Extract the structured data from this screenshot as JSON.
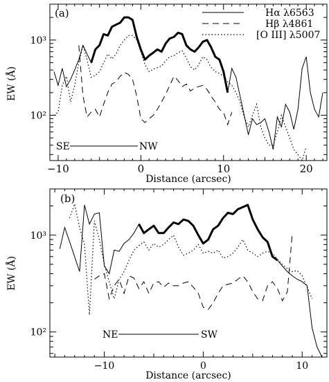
{
  "chart_data": [
    {
      "type": "line",
      "panel_label": "(a)",
      "xlabel": "Distance (arcsec)",
      "ylabel": "EW (Å)",
      "xlim": [
        -11,
        22.5
      ],
      "ylim": [
        25,
        3000
      ],
      "yscale": "log",
      "x_tick_labels": [
        "−10",
        "0",
        "10",
        "20"
      ],
      "x_tick_values": [
        -10,
        0,
        10,
        20
      ],
      "y_tick_labels": [
        "10²",
        "10³"
      ],
      "y_tick_values": [
        100,
        1000
      ],
      "legend": {
        "placement": "top-right",
        "entries": [
          "Hα λ6563",
          "Hβ λ4861",
          "[O III] λ5007"
        ]
      },
      "orientation_labels": {
        "left": "SE",
        "right": "NW"
      },
      "series": [
        {
          "name": "Hα λ6563",
          "style": "solid",
          "x": [
            -10.5,
            -10,
            -9.5,
            -9,
            -8.5,
            -8,
            -7.5,
            -7,
            -6.5,
            -6,
            -5.5,
            -5,
            -4.5,
            -4,
            -3.5,
            -3,
            -2.5,
            -2,
            -1.5,
            -1,
            -0.5,
            0,
            0.5,
            1,
            1.5,
            2,
            2.5,
            3,
            3.5,
            4,
            4.5,
            5,
            5.5,
            6,
            6.5,
            7,
            7.5,
            8,
            8.5,
            9,
            9.5,
            10,
            10.5,
            11,
            11.5,
            12,
            12.5,
            13,
            13.5,
            14,
            14.5,
            15,
            15.5,
            16,
            16.5,
            17,
            17.5,
            18,
            18.5,
            19,
            19.5,
            20,
            20.5,
            21,
            21.5,
            22
          ],
          "y": [
            380,
            250,
            420,
            240,
            300,
            400,
            550,
            850,
            650,
            500,
            750,
            850,
            1200,
            1150,
            1500,
            1600,
            1700,
            2000,
            2000,
            1850,
            1100,
            750,
            550,
            620,
            680,
            750,
            700,
            900,
            1050,
            1100,
            1250,
            1200,
            850,
            750,
            700,
            800,
            950,
            1000,
            800,
            600,
            550,
            380,
            200,
            420,
            320,
            180,
            100,
            55,
            90,
            75,
            80,
            90,
            60,
            35,
            95,
            70,
            140,
            110,
            65,
            120,
            420,
            600,
            200,
            120,
            95,
            200
          ]
        },
        {
          "name": "Hβ λ4861",
          "style": "dashed",
          "x": [
            -7.5,
            -7,
            -6.5,
            -6,
            -5.5,
            -5,
            -4.5,
            -4,
            -3.5,
            -3,
            -2.5,
            -2,
            -1.5,
            -1,
            -0.5,
            0,
            0.5,
            1,
            1.5,
            2,
            2.5,
            3,
            3.5,
            4,
            4.5,
            5,
            5.5,
            6,
            6.5,
            7,
            7.5,
            8,
            8.5,
            9,
            9.5,
            10,
            10.5,
            11
          ],
          "y": [
            850,
            180,
            95,
            110,
            120,
            95,
            140,
            200,
            260,
            280,
            330,
            370,
            350,
            300,
            180,
            90,
            80,
            90,
            100,
            120,
            150,
            190,
            250,
            330,
            290,
            240,
            260,
            210,
            230,
            240,
            250,
            220,
            180,
            150,
            120,
            110,
            75,
            110
          ]
        },
        {
          "name": "[O III] λ5007",
          "style": "dotted",
          "x": [
            -10.5,
            -10,
            -9.5,
            -9,
            -8.5,
            -8,
            -7.5,
            -7,
            -6.5,
            -6,
            -5.5,
            -5,
            -4.5,
            -4,
            -3.5,
            -3,
            -2.5,
            -2,
            -1.5,
            -1,
            -0.5,
            0,
            0.5,
            1,
            1.5,
            2,
            2.5,
            3,
            3.5,
            4,
            4.5,
            5,
            5.5,
            6,
            6.5,
            7,
            7.5,
            8,
            8.5,
            9,
            9.5,
            10,
            10.5,
            11,
            11.5,
            12,
            12.5,
            13,
            13.5,
            14,
            14.5,
            15,
            15.5,
            16,
            16.5,
            17,
            17.5,
            18,
            18.5,
            19,
            19.5,
            20
          ],
          "y": [
            100,
            110,
            250,
            330,
            150,
            250,
            500,
            850,
            550,
            320,
            340,
            380,
            500,
            650,
            560,
            650,
            850,
            1000,
            1150,
            1150,
            1000,
            700,
            470,
            380,
            410,
            430,
            450,
            530,
            600,
            620,
            680,
            720,
            580,
            440,
            400,
            470,
            600,
            550,
            430,
            380,
            360,
            330,
            280,
            250,
            200,
            150,
            95,
            70,
            100,
            140,
            70,
            50,
            40,
            40,
            60,
            100,
            70,
            50,
            35,
            30,
            25,
            38
          ]
        }
      ]
    },
    {
      "type": "line",
      "panel_label": "(b)",
      "xlabel": "Distance (arcsec)",
      "ylabel": "EW (Å)",
      "xlim": [
        -15.5,
        12.5
      ],
      "ylim": [
        55,
        3000
      ],
      "yscale": "log",
      "x_tick_labels": [
        "−10",
        "0",
        "10"
      ],
      "x_tick_values": [
        -10,
        0,
        10
      ],
      "y_tick_labels": [
        "10²",
        "10³"
      ],
      "y_tick_values": [
        100,
        1000
      ],
      "orientation_labels": {
        "left": "NE",
        "right": "SW"
      },
      "series": [
        {
          "name": "Hα λ6563",
          "style": "solid",
          "x": [
            -14.5,
            -14,
            -13.5,
            -13,
            -12.5,
            -12,
            -11.5,
            -11,
            -10.5,
            -10,
            -9.5,
            -9,
            -8.5,
            -8,
            -7.5,
            -7,
            -6.5,
            -6,
            -5.5,
            -5,
            -4.5,
            -4,
            -3.5,
            -3,
            -2.5,
            -2,
            -1.5,
            -1,
            -0.5,
            0,
            0.5,
            1,
            1.5,
            2,
            2.5,
            3,
            3.5,
            4,
            4.5,
            5,
            5.5,
            6,
            6.5,
            7,
            7.5,
            8,
            8.5,
            9,
            9.5,
            10,
            10.5,
            11,
            11.5,
            12
          ],
          "y": [
            720,
            1200,
            850,
            600,
            420,
            2050,
            1300,
            1650,
            1700,
            480,
            400,
            700,
            680,
            820,
            900,
            1050,
            1300,
            1050,
            1150,
            1250,
            1050,
            1050,
            1200,
            1350,
            1300,
            1450,
            1400,
            1250,
            1000,
            820,
            900,
            1150,
            1250,
            1500,
            1700,
            1650,
            1850,
            1950,
            2050,
            1450,
            1150,
            950,
            850,
            600,
            550,
            480,
            420,
            380,
            350,
            330,
            300,
            110,
            70,
            50
          ]
        },
        {
          "name": "Hβ λ4861",
          "style": "dashed",
          "x": [
            -11,
            -10.5,
            -10,
            -9.5,
            -9,
            -8.5,
            -8,
            -7.5,
            -7,
            -6.5,
            -6,
            -5.5,
            -5,
            -4.5,
            -4,
            -3.5,
            -3,
            -2.5,
            -2,
            -1.5,
            -1,
            -0.5,
            0,
            0.5,
            1,
            1.5,
            2,
            2.5,
            3,
            3.5,
            4,
            4.5,
            5,
            5.5,
            6,
            6.5,
            7,
            7.5,
            8,
            8.5,
            9
          ],
          "y": [
            350,
            380,
            400,
            220,
            300,
            350,
            250,
            380,
            360,
            280,
            330,
            250,
            320,
            330,
            290,
            320,
            300,
            300,
            320,
            330,
            290,
            250,
            180,
            170,
            200,
            250,
            300,
            310,
            320,
            350,
            380,
            330,
            260,
            220,
            210,
            300,
            330,
            280,
            210,
            260,
            1050
          ]
        },
        {
          "name": "[O III] λ5007",
          "style": "dotted",
          "x": [
            -13.5,
            -13,
            -12.5,
            -12,
            -11.5,
            -11,
            -10.5,
            -10,
            -9.5,
            -9,
            -8.5,
            -8,
            -7.5,
            -7,
            -6.5,
            -6,
            -5.5,
            -5,
            -4.5,
            -4,
            -3.5,
            -3,
            -2.5,
            -2,
            -1.5,
            -1,
            -0.5,
            0,
            0.5,
            1,
            1.5,
            2,
            2.5,
            3,
            3.5,
            4,
            4.5,
            5,
            5.5,
            6,
            6.5,
            7,
            7.5,
            8,
            8.5,
            9,
            9.5,
            10,
            10.5,
            11
          ],
          "y": [
            1500,
            2100,
            1200,
            800,
            150,
            1400,
            900,
            500,
            330,
            220,
            350,
            420,
            550,
            700,
            780,
            850,
            700,
            820,
            750,
            800,
            900,
            1000,
            750,
            620,
            650,
            700,
            800,
            650,
            680,
            650,
            700,
            580,
            600,
            650,
            750,
            900,
            700,
            650,
            600,
            650,
            680,
            650,
            560,
            500,
            450,
            420,
            430,
            380,
            290,
            220
          ]
        }
      ]
    }
  ]
}
